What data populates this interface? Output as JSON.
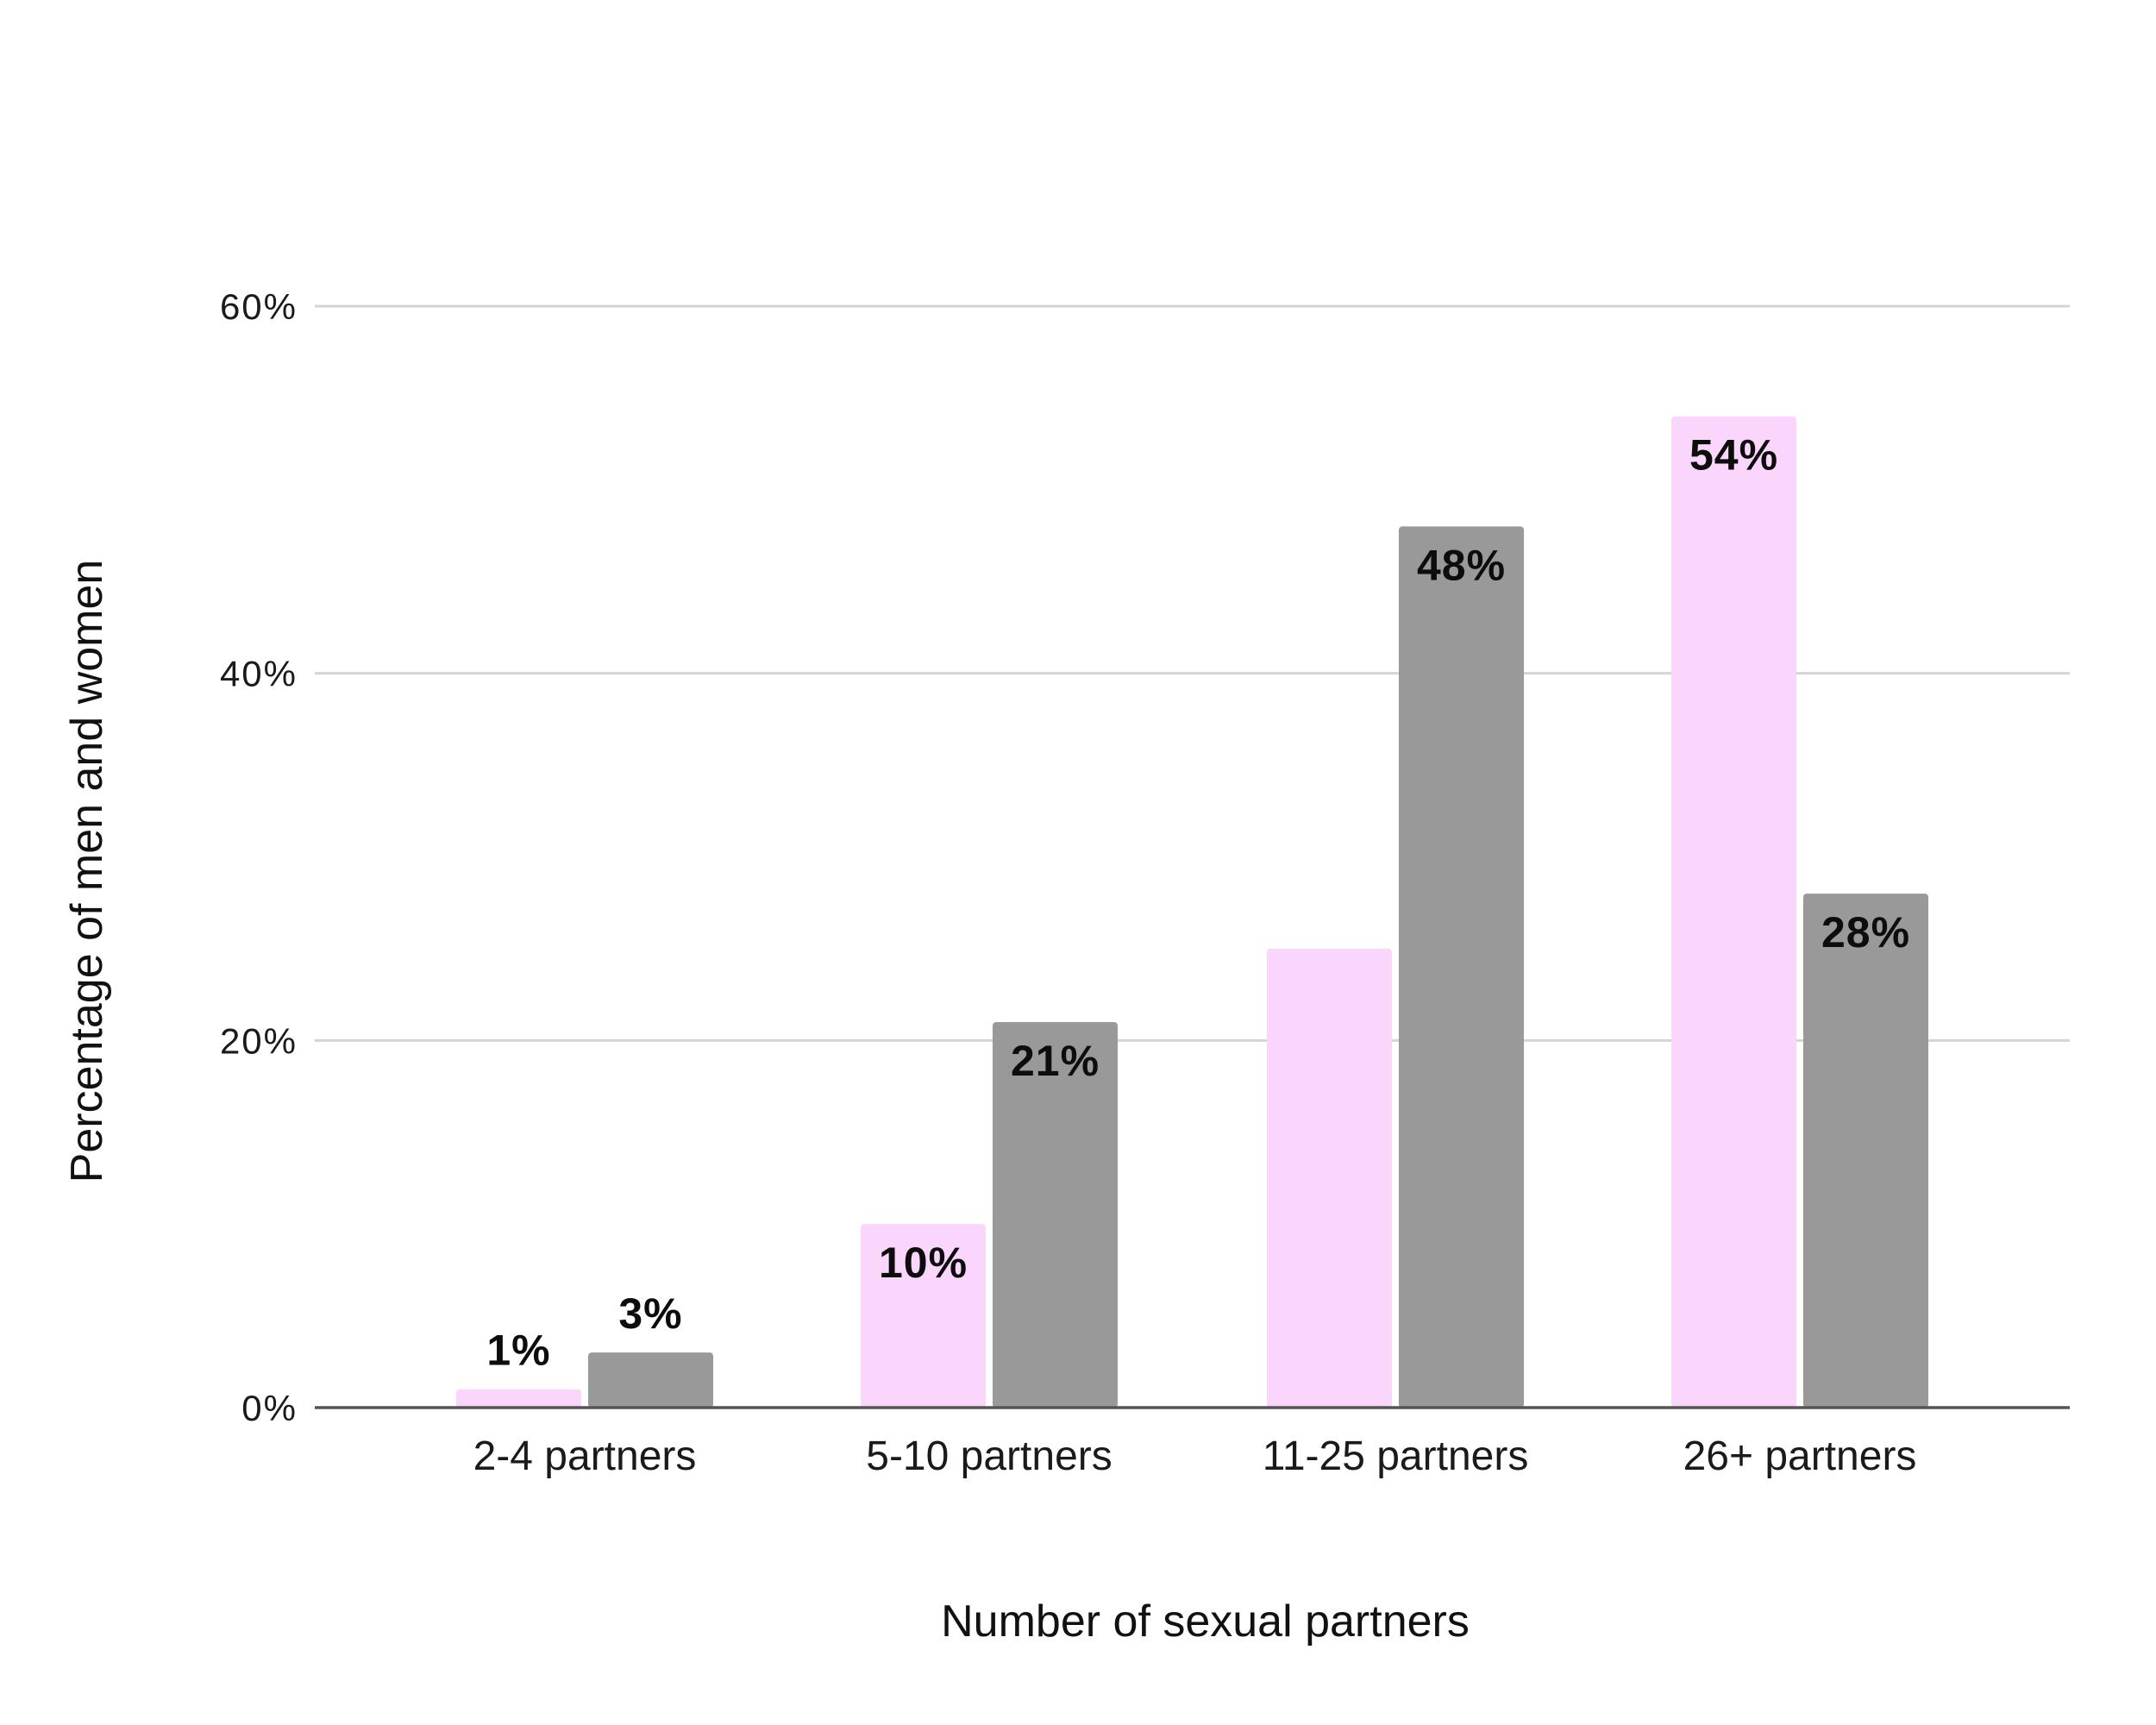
{
  "chart_data": {
    "type": "bar",
    "categories": [
      "2-4 partners",
      "5-10 partners",
      "11-25 partners",
      "26+ partners"
    ],
    "series": [
      {
        "color": "#fad5fc",
        "values": [
          1,
          10,
          25,
          54
        ],
        "labels": [
          "1%",
          "10%",
          "",
          "54%"
        ]
      },
      {
        "color": "#999999",
        "values": [
          3,
          21,
          48,
          28
        ],
        "labels": [
          "3%",
          "21%",
          "48%",
          "28%"
        ]
      }
    ],
    "title": "",
    "xlabel": "Number of sexual partners",
    "ylabel": "Percentage of men and women",
    "ylim": [
      0,
      60
    ],
    "yticks": [
      0,
      20,
      40,
      60
    ],
    "ytick_labels": [
      "0%",
      "20%",
      "40%",
      "60%"
    ],
    "grid": true,
    "legend": "none"
  }
}
